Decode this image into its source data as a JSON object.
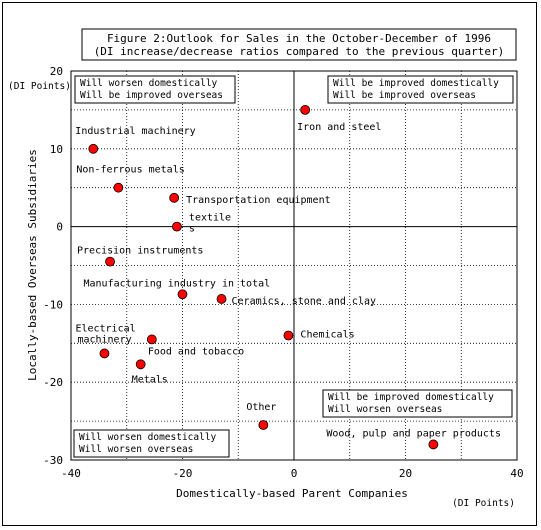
{
  "chart_data": {
    "type": "scatter",
    "title": "Figure 2:Outlook for Sales in the October-December of 1996",
    "subtitle": "(DI increase/decrease ratios compared to the previous quarter)",
    "xlabel": "Domestically-based Parent Companies",
    "ylabel": "Locally-based Overseas Subsidiaries",
    "x_unit": "(DI Points)",
    "y_unit": "(DI Points)",
    "xlim": [
      -40,
      40
    ],
    "ylim": [
      -30,
      20
    ],
    "xticks": [
      -40,
      -20,
      0,
      20,
      40
    ],
    "yticks": [
      20,
      10,
      0,
      -10,
      -20,
      -30
    ],
    "grid": true,
    "marker_color": "#ff0000",
    "points": [
      {
        "label": "Iron and steel",
        "x": 2,
        "y": 15
      },
      {
        "label": "Industrial machinery",
        "x": -36,
        "y": 10
      },
      {
        "label": "Non-ferrous metals",
        "x": -31.5,
        "y": 5
      },
      {
        "label": "Transportation equipment",
        "x": -21.5,
        "y": 3.7
      },
      {
        "label": "textile",
        "label_cont": "s",
        "x": -21,
        "y": 0
      },
      {
        "label": "Precision instruments",
        "x": -33,
        "y": -4.5
      },
      {
        "label": "Manufacturing industry in total",
        "x": -20,
        "y": -8.7
      },
      {
        "label": "Ceramics, stone and clay",
        "x": -13,
        "y": -9.3
      },
      {
        "label": "Electrical",
        "label_cont": "machinery",
        "x": -34,
        "y": -16.3
      },
      {
        "label": "Food and tobacco",
        "x": -25.5,
        "y": -14.5
      },
      {
        "label": "Metals",
        "x": -27.5,
        "y": -17.7
      },
      {
        "label": "Chemicals",
        "x": -1,
        "y": -14
      },
      {
        "label": "Other",
        "x": -5.5,
        "y": -25.5
      },
      {
        "label": "Wood, pulp and paper products",
        "x": 25,
        "y": -28
      }
    ],
    "quadrants": {
      "top_left": [
        "Will worsen domestically",
        "Will be improved overseas"
      ],
      "top_right": [
        "Will be improved domestically",
        "Will be improved overseas"
      ],
      "bottom_right": [
        "Will be improved domestically",
        "Will worsen overseas"
      ],
      "bottom_left": [
        "Will worsen domestically",
        "Will worsen overseas"
      ]
    }
  }
}
